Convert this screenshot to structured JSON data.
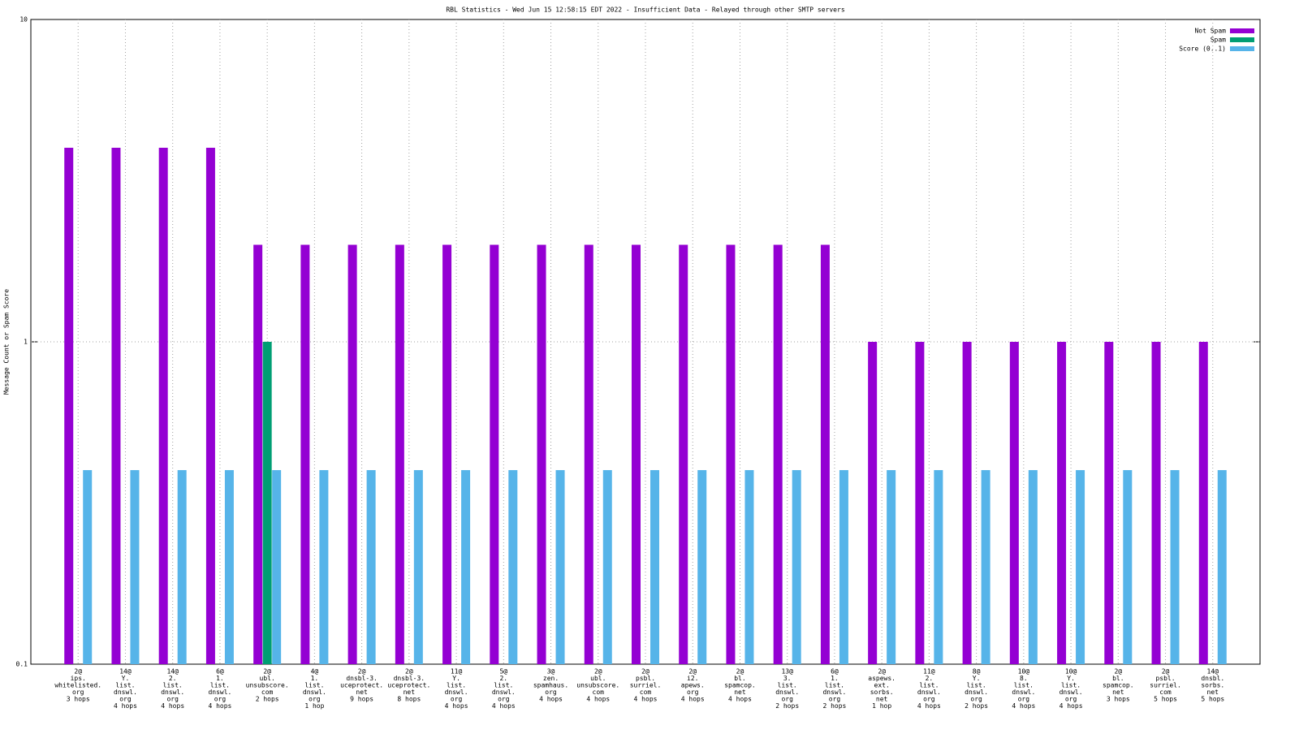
{
  "chart_data": {
    "type": "bar",
    "title": "RBL Statistics - Wed Jun 15 12:58:15 EDT 2022 - Insufficient Data - Relayed through other SMTP servers",
    "y_label": "Message Count or Spam Score",
    "categories": [
      [
        "2@",
        "ips.",
        "whitelisted.",
        "org",
        "3 hops"
      ],
      [
        "14@",
        "Y.",
        "list.",
        "dnswl.",
        "org",
        "4 hops"
      ],
      [
        "14@",
        "2.",
        "list.",
        "dnswl.",
        "org",
        "4 hops"
      ],
      [
        "6@",
        "1.",
        "list.",
        "dnswl.",
        "org",
        "4 hops"
      ],
      [
        "2@",
        "ubl.",
        "unsubscore.",
        "com",
        "2 hops"
      ],
      [
        "4@",
        "1.",
        "list.",
        "dnswl.",
        "org",
        "1 hop"
      ],
      [
        "2@",
        "dnsbl-3.",
        "uceprotect.",
        "net",
        "9 hops"
      ],
      [
        "2@",
        "dnsbl-3.",
        "uceprotect.",
        "net",
        "8 hops"
      ],
      [
        "11@",
        "Y.",
        "list.",
        "dnswl.",
        "org",
        "4 hops"
      ],
      [
        "5@",
        "2.",
        "list.",
        "dnswl.",
        "org",
        "4 hops"
      ],
      [
        "3@",
        "zen.",
        "spamhaus.",
        "org",
        "4 hops"
      ],
      [
        "2@",
        "ubl.",
        "unsubscore.",
        "com",
        "4 hops"
      ],
      [
        "2@",
        "psbl.",
        "surriel.",
        "com",
        "4 hops"
      ],
      [
        "2@",
        "i2.",
        "apews.",
        "org",
        "4 hops"
      ],
      [
        "2@",
        "bl.",
        "spamcop.",
        "net",
        "4 hops"
      ],
      [
        "13@",
        "3.",
        "list.",
        "dnswl.",
        "org",
        "2 hops"
      ],
      [
        "6@",
        "1.",
        "list.",
        "dnswl.",
        "org",
        "2 hops"
      ],
      [
        "2@",
        "aspews.",
        "ext.",
        "sorbs.",
        "net",
        "1 hop"
      ],
      [
        "11@",
        "2.",
        "list.",
        "dnswl.",
        "org",
        "4 hops"
      ],
      [
        "8@",
        "Y.",
        "list.",
        "dnswl.",
        "org",
        "2 hops"
      ],
      [
        "10@",
        "8.",
        "list.",
        "dnswl.",
        "org",
        "4 hops"
      ],
      [
        "10@",
        "Y.",
        "list.",
        "dnswl.",
        "org",
        "4 hops"
      ],
      [
        "2@",
        "bl.",
        "spamcop.",
        "net",
        "3 hops"
      ],
      [
        "2@",
        "psbl.",
        "surriel.",
        "com",
        "5 hops"
      ],
      [
        "14@",
        "dnsbl.",
        "sorbs.",
        "net",
        "5 hops"
      ]
    ],
    "series": [
      {
        "name": "Not Spam",
        "color": "#9400d3",
        "values": [
          4,
          4,
          4,
          4,
          2,
          2,
          2,
          2,
          2,
          2,
          2,
          2,
          2,
          2,
          2,
          2,
          2,
          1,
          1,
          1,
          1,
          1,
          1,
          1,
          1
        ]
      },
      {
        "name": "Spam",
        "color": "#009e73",
        "values": [
          null,
          null,
          null,
          null,
          1,
          null,
          null,
          null,
          null,
          null,
          null,
          null,
          null,
          null,
          null,
          null,
          null,
          null,
          null,
          null,
          null,
          null,
          null,
          null,
          null
        ]
      },
      {
        "name": "Score (0..1)",
        "color": "#56b4e9",
        "values": [
          0.4,
          0.4,
          0.4,
          0.4,
          0.4,
          0.4,
          0.4,
          0.4,
          0.4,
          0.4,
          0.4,
          0.4,
          0.4,
          0.4,
          0.4,
          0.4,
          0.4,
          0.4,
          0.4,
          0.4,
          0.4,
          0.4,
          0.4,
          0.4,
          0.4
        ]
      }
    ],
    "ylim": [
      0.1,
      10
    ],
    "yticks": [
      0.1,
      1,
      10
    ],
    "log_y": true,
    "grid": true,
    "legend": "top-right"
  }
}
